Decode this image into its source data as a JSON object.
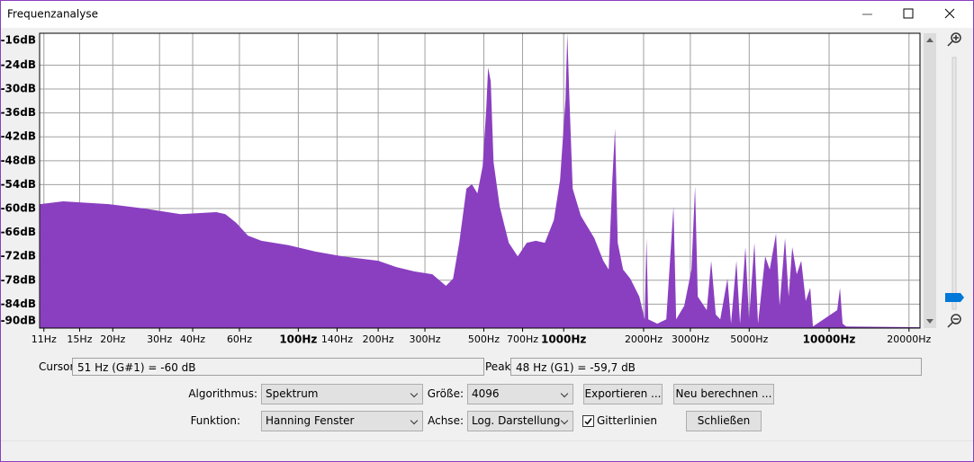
{
  "window": {
    "title": "Frequenzanalyse"
  },
  "chart_data": {
    "type": "area",
    "log_x": true,
    "grid": true,
    "color": "#8a3fc0",
    "xlim": [
      10.6,
      22000
    ],
    "ylim": [
      -90,
      -16
    ],
    "xticks": [
      {
        "value": 11,
        "label": "11Hz"
      },
      {
        "value": 15,
        "label": "15Hz"
      },
      {
        "value": 20,
        "label": "20Hz"
      },
      {
        "value": 30,
        "label": "30Hz"
      },
      {
        "value": 40,
        "label": "40Hz"
      },
      {
        "value": 60,
        "label": "60Hz"
      },
      {
        "value": 100,
        "label": "100Hz"
      },
      {
        "value": 140,
        "label": "140Hz"
      },
      {
        "value": 200,
        "label": "200Hz"
      },
      {
        "value": 300,
        "label": "300Hz"
      },
      {
        "value": 500,
        "label": "500Hz"
      },
      {
        "value": 700,
        "label": "700Hz"
      },
      {
        "value": 1000,
        "label": "1000Hz"
      },
      {
        "value": 2000,
        "label": "2000Hz"
      },
      {
        "value": 3000,
        "label": "3000Hz"
      },
      {
        "value": 5000,
        "label": "5000Hz"
      },
      {
        "value": 10000,
        "label": "10000Hz"
      },
      {
        "value": 20000,
        "label": "20000Hz"
      }
    ],
    "yticks": [
      {
        "value": -16,
        "label": "-16dB"
      },
      {
        "value": -24,
        "label": "-24dB"
      },
      {
        "value": -30,
        "label": "-30dB"
      },
      {
        "value": -36,
        "label": "-36dB"
      },
      {
        "value": -42,
        "label": "-42dB"
      },
      {
        "value": -48,
        "label": "-48dB"
      },
      {
        "value": -54,
        "label": "-54dB"
      },
      {
        "value": -60,
        "label": "-60dB"
      },
      {
        "value": -66,
        "label": "-66dB"
      },
      {
        "value": -72,
        "label": "-72dB"
      },
      {
        "value": -78,
        "label": "-78dB"
      },
      {
        "value": -84,
        "label": "-84dB"
      },
      {
        "value": -90,
        "label": "-90dB"
      }
    ],
    "x": [
      10.65,
      13.0,
      19.3,
      26.3,
      36.0,
      49.1,
      53.1,
      58.4,
      64.6,
      72.6,
      91.8,
      116,
      147,
      200,
      234,
      274,
      320,
      360,
      383,
      404,
      430,
      451,
      473,
      495,
      511,
      519,
      531,
      544,
      574,
      621,
      671,
      726,
      785,
      849,
      918,
      969,
      1016,
      1032,
      1048,
      1081,
      1160,
      1304,
      1410,
      1477,
      1525,
      1561,
      1598,
      1674,
      1782,
      1927,
      2019,
      2051,
      2083,
      2252,
      2435,
      2592,
      2653,
      2846,
      3030,
      3126,
      3200,
      3459,
      3596,
      3740,
      3889,
      4140,
      4271,
      4475,
      4617,
      4838,
      4993,
      5231,
      5397,
      5744,
      5974,
      6310,
      6510,
      6823,
      7040,
      7262,
      7551,
      7852,
      8165,
      8489,
      8690,
      10730,
      10990,
      11240,
      11600,
      22000
    ],
    "values": [
      -58.9,
      -58.2,
      -58.9,
      -60.0,
      -61.4,
      -60.9,
      -61.4,
      -63.6,
      -66.8,
      -68.1,
      -69.2,
      -70.8,
      -72.0,
      -73.1,
      -74.7,
      -75.8,
      -76.5,
      -79.4,
      -77.6,
      -68.6,
      -55.0,
      -53.9,
      -56.2,
      -49.4,
      -34.7,
      -24.6,
      -28.0,
      -48.3,
      -59.5,
      -68.6,
      -72.0,
      -68.6,
      -68.1,
      -68.6,
      -62.9,
      -52.8,
      -32.5,
      -16.0,
      -30.2,
      -55.0,
      -61.8,
      -67.4,
      -73.1,
      -75.3,
      -52.8,
      -39.9,
      -68.6,
      -75.3,
      -77.6,
      -82.1,
      -87.8,
      -67.4,
      -87.8,
      -88.9,
      -87.8,
      -59.5,
      -87.8,
      -84.4,
      -75.3,
      -54.4,
      -82.1,
      -85.5,
      -73.1,
      -86.6,
      -87.8,
      -77.6,
      -88.9,
      -73.1,
      -88.9,
      -69.7,
      -87.8,
      -68.6,
      -88.9,
      -72.0,
      -75.3,
      -66.3,
      -84.4,
      -67.4,
      -82.1,
      -69.7,
      -76.5,
      -73.1,
      -83.2,
      -79.9,
      -89.6,
      -85.5,
      -79.9,
      -88.9,
      -89.6,
      -89.8
    ]
  },
  "status": {
    "cursor_label": "Cursor:",
    "cursor_value": "51 Hz (G#1) = -60 dB",
    "peak_label": "Peak:",
    "peak_value": "48 Hz (G1) = -59,7 dB"
  },
  "controls": {
    "algorithm_label": "Algorithmus:",
    "algorithm": "Spektrum",
    "size_label": "Größe:",
    "size": "4096",
    "export_button": "Exportieren ...",
    "recompute_button": "Neu berechnen ...",
    "function_label": "Funktion:",
    "function": "Hanning Fenster",
    "axis_label": "Achse:",
    "axis": "Log. Darstellung",
    "grid_checkbox": "Gitterlinien",
    "close_button": "Schließen"
  }
}
